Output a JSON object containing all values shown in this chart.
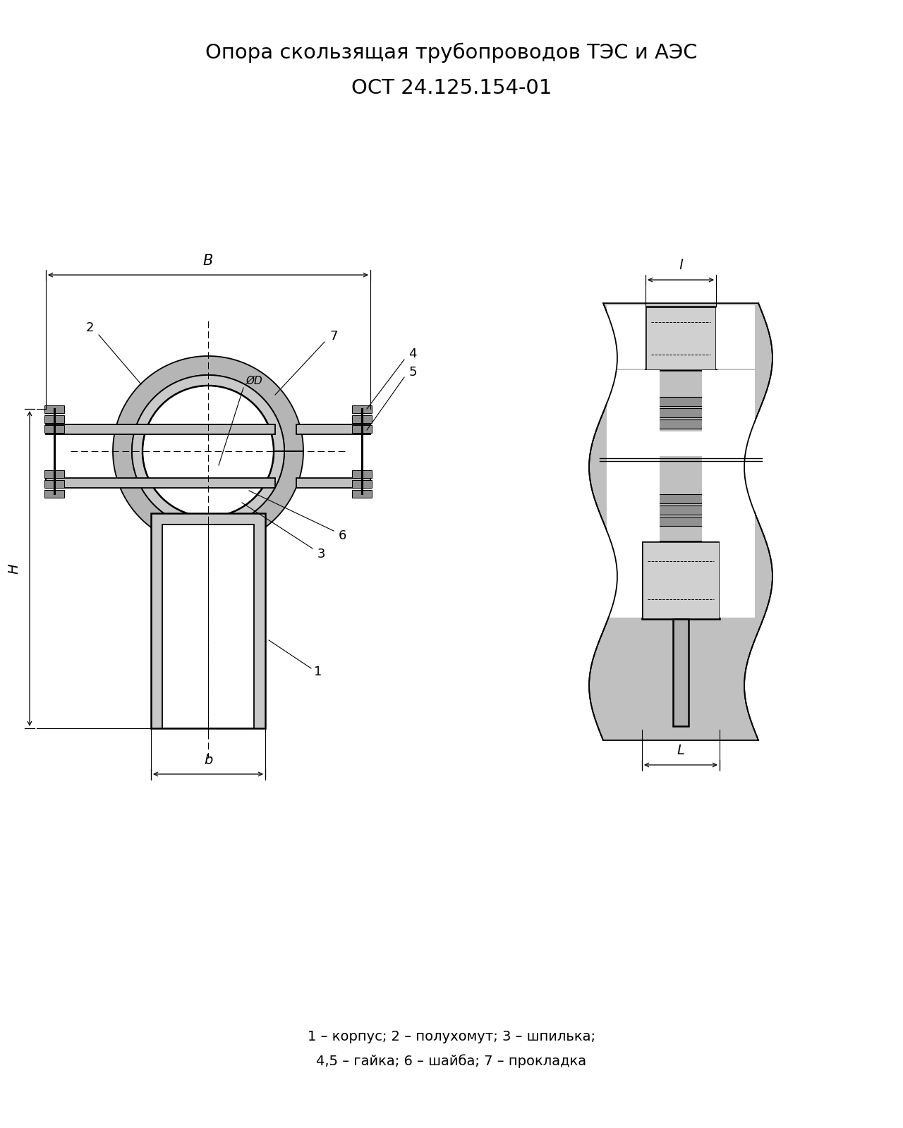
{
  "title_line1": "Опора скользящая трубопроводов ТЭС и АЭС",
  "title_line2": "ОСТ 24.125.154-01",
  "legend_text1": "1 – корпус; 2 – полухомут; 3 – шпилька;",
  "legend_text2": "4,5 – гайка; 6 – шайба; 7 – прокладка",
  "bg_color": "#ffffff",
  "line_color": "#000000",
  "gray_light": "#d0d0d0",
  "gray_mid": "#b8b8b8",
  "gray_dark": "#a0a0a0"
}
